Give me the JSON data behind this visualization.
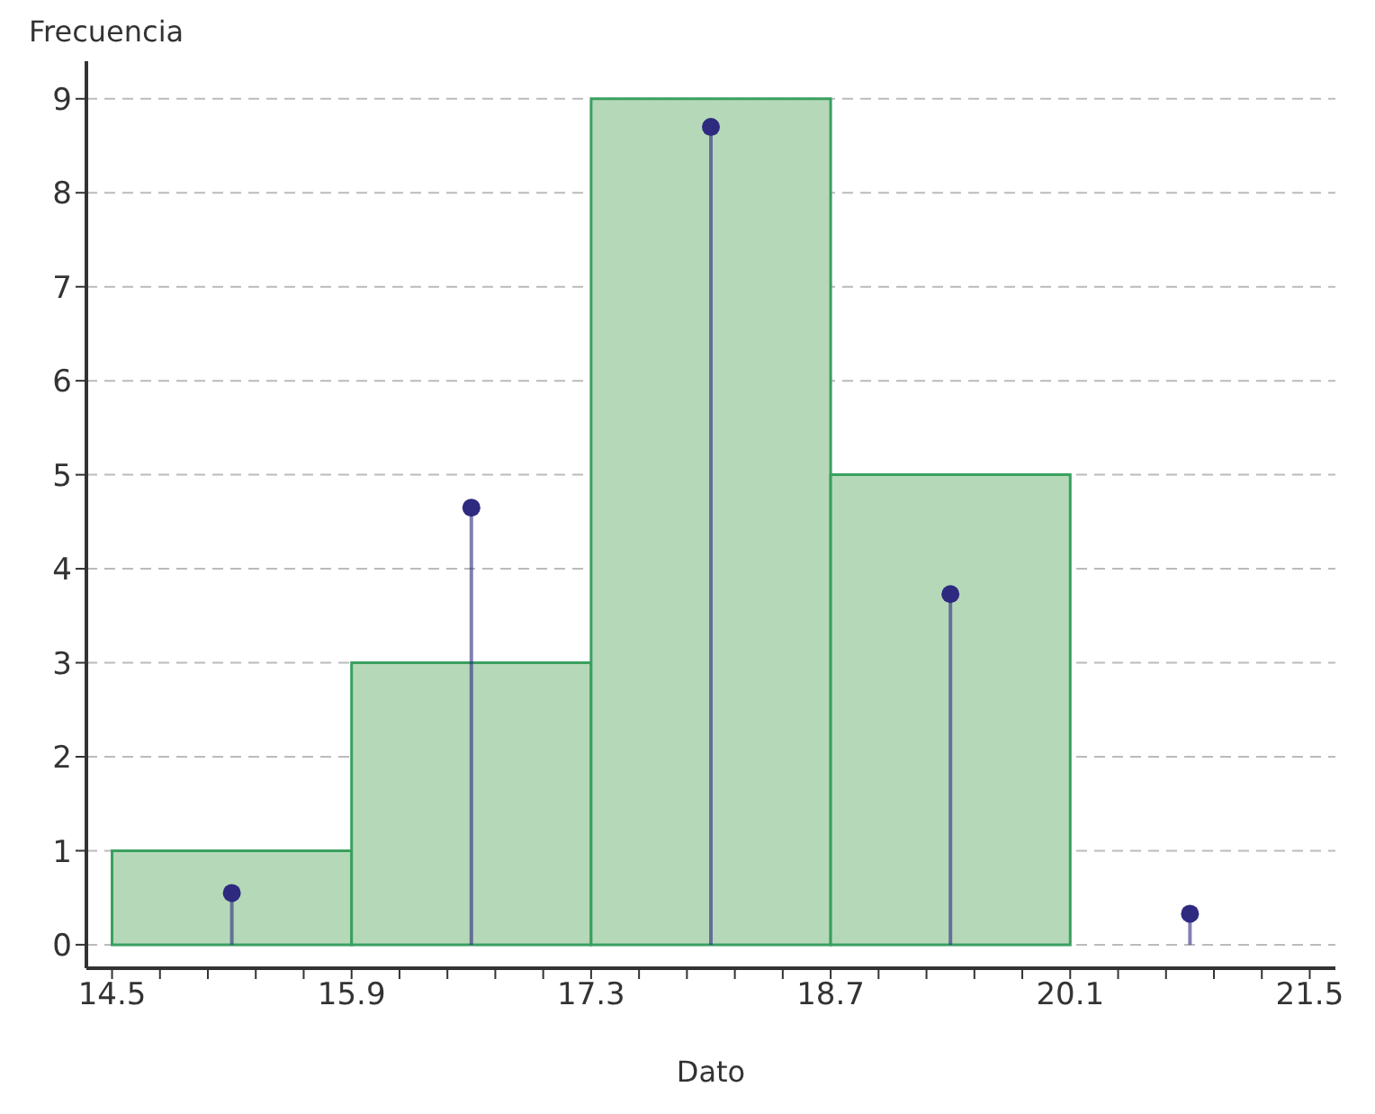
{
  "chart_data": {
    "type": "histogram",
    "xlabel": "Dato",
    "ylabel": "Frecuencia",
    "bins": [
      14.5,
      15.9,
      17.3,
      18.7,
      20.1
    ],
    "series": [
      {
        "color": "#b5d9b8",
        "values": [
          1,
          3,
          9,
          5
        ]
      },
      {
        "type": "lollipop",
        "color": "#2e2a80",
        "x": [
          15.2,
          16.6,
          18.0,
          19.4,
          20.8
        ],
        "values": [
          0.55,
          4.65,
          8.7,
          3.73,
          0.33
        ]
      }
    ],
    "marker": "circle",
    "xlim": [
      14.35,
      21.65
    ],
    "ylim": [
      -0.25,
      9.4
    ],
    "xticks": [
      14.5,
      {
        "value": 14.78,
        "label": null
      },
      {
        "value": 15.06,
        "label": null
      },
      {
        "value": 15.34,
        "label": null
      },
      {
        "value": 15.62,
        "label": null
      },
      15.9,
      {
        "value": 16.18,
        "label": null
      },
      {
        "value": 16.46,
        "label": null
      },
      {
        "value": 16.74,
        "label": null
      },
      {
        "value": 17.02,
        "label": null
      },
      17.3,
      {
        "value": 17.58,
        "label": null
      },
      {
        "value": 17.86,
        "label": null
      },
      {
        "value": 18.14,
        "label": null
      },
      {
        "value": 18.42,
        "label": null
      },
      18.7,
      {
        "value": 18.98,
        "label": null
      },
      {
        "value": 19.26,
        "label": null
      },
      {
        "value": 19.54,
        "label": null
      },
      {
        "value": 19.82,
        "label": null
      },
      20.1,
      {
        "value": 20.38,
        "label": null
      },
      {
        "value": 20.66,
        "label": null
      },
      {
        "value": 20.94,
        "label": null
      },
      {
        "value": 21.22,
        "label": null
      },
      21.5
    ],
    "yticks": [
      0,
      1,
      2,
      3,
      4,
      5,
      6,
      7,
      8,
      9
    ],
    "grid": "y"
  }
}
